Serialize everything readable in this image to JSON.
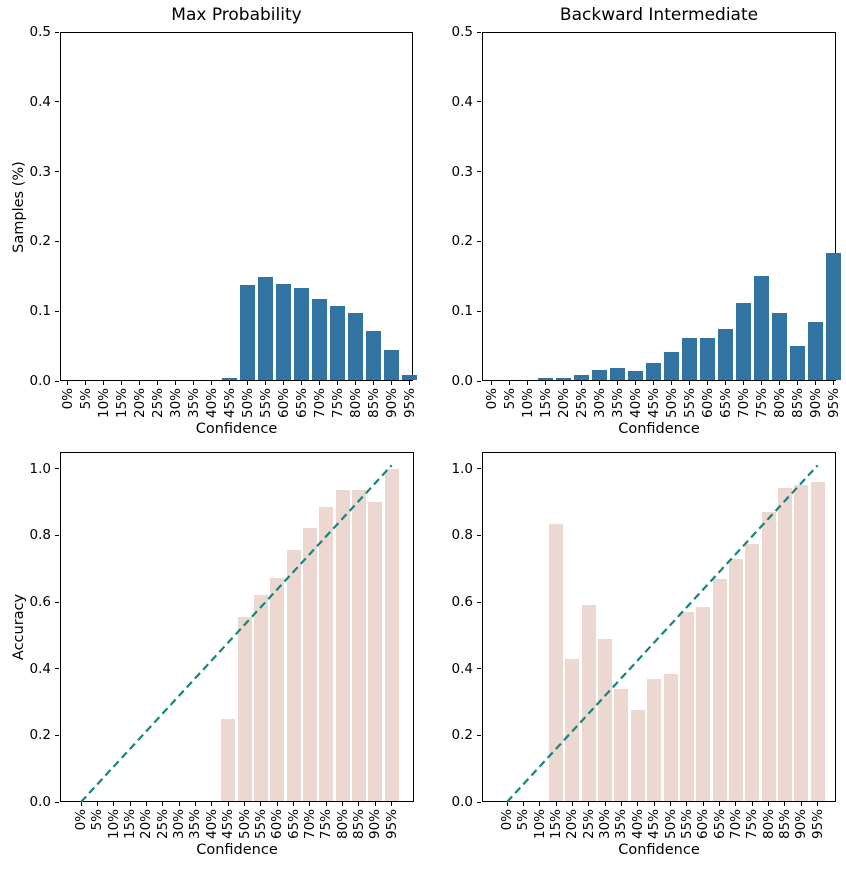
{
  "figure": {
    "background": "#ffffff",
    "text_color": "#000000",
    "spine_color": "#000000"
  },
  "chart_data": [
    {
      "id": "max-probability-samples",
      "type": "bar",
      "title": "Max Probability",
      "xlabel": "Confidence",
      "ylabel": "Samples (%)",
      "categories": [
        "0%",
        "5%",
        "10%",
        "15%",
        "20%",
        "25%",
        "30%",
        "35%",
        "40%",
        "45%",
        "50%",
        "55%",
        "60%",
        "65%",
        "70%",
        "75%",
        "80%",
        "85%",
        "90%",
        "95%"
      ],
      "values": [
        0,
        0,
        0,
        0,
        0,
        0,
        0,
        0,
        0,
        0.004,
        0.137,
        0.149,
        0.139,
        0.133,
        0.118,
        0.108,
        0.098,
        0.071,
        0.045,
        0.008
      ],
      "bar_color": "#3274a1",
      "ylim": [
        0,
        0.5
      ],
      "yticks": [
        0.0,
        0.1,
        0.2,
        0.3,
        0.4,
        0.5
      ],
      "grid": false,
      "legend": null
    },
    {
      "id": "backward-intermediate-samples",
      "type": "bar",
      "title": "Backward Intermediate",
      "xlabel": "Confidence",
      "ylabel": "",
      "categories": [
        "0%",
        "5%",
        "10%",
        "15%",
        "20%",
        "25%",
        "30%",
        "35%",
        "40%",
        "45%",
        "50%",
        "55%",
        "60%",
        "65%",
        "70%",
        "75%",
        "80%",
        "85%",
        "90%",
        "95%"
      ],
      "values": [
        0,
        0,
        0,
        0.004,
        0.004,
        0.009,
        0.016,
        0.018,
        0.015,
        0.026,
        0.041,
        0.061,
        0.062,
        0.074,
        0.112,
        0.151,
        0.098,
        0.05,
        0.085,
        0.183
      ],
      "bar_color": "#3274a1",
      "ylim": [
        0,
        0.5
      ],
      "yticks": [
        0.0,
        0.1,
        0.2,
        0.3,
        0.4,
        0.5
      ],
      "grid": false,
      "legend": null
    },
    {
      "id": "max-probability-accuracy",
      "type": "bar+line",
      "title": "",
      "xlabel": "Confidence",
      "ylabel": "Accuracy",
      "categories": [
        "0%",
        "5%",
        "10%",
        "15%",
        "20%",
        "25%",
        "30%",
        "35%",
        "40%",
        "45%",
        "50%",
        "55%",
        "60%",
        "65%",
        "70%",
        "75%",
        "80%",
        "85%",
        "90%",
        "95%"
      ],
      "values": [
        0,
        0,
        0,
        0,
        0,
        0,
        0,
        0,
        0,
        0.25,
        0.555,
        0.62,
        0.671,
        0.757,
        0.823,
        0.884,
        0.937,
        0.937,
        0.9,
        1.0
      ],
      "bar_color": "#ecd7d1",
      "ylim": [
        0,
        1.05
      ],
      "yticks": [
        0.0,
        0.2,
        0.4,
        0.6,
        0.8,
        1.0
      ],
      "grid": false,
      "legend": null,
      "line": {
        "style": "dashed",
        "color": "#10867e",
        "x_index": [
          0,
          19
        ],
        "y": [
          0,
          1.01
        ]
      }
    },
    {
      "id": "backward-intermediate-accuracy",
      "type": "bar+line",
      "title": "",
      "xlabel": "Confidence",
      "ylabel": "",
      "categories": [
        "0%",
        "5%",
        "10%",
        "15%",
        "20%",
        "25%",
        "30%",
        "35%",
        "40%",
        "45%",
        "50%",
        "55%",
        "60%",
        "65%",
        "70%",
        "75%",
        "80%",
        "85%",
        "90%",
        "95%"
      ],
      "values": [
        0,
        0,
        0,
        0.833,
        0.428,
        0.59,
        0.489,
        0.34,
        0.277,
        0.37,
        0.385,
        0.57,
        0.585,
        0.67,
        0.73,
        0.775,
        0.87,
        0.942,
        0.952,
        0.96
      ],
      "bar_color": "#ecd7d1",
      "ylim": [
        0,
        1.05
      ],
      "yticks": [
        0.0,
        0.2,
        0.4,
        0.6,
        0.8,
        1.0
      ],
      "grid": false,
      "legend": null,
      "line": {
        "style": "dashed",
        "color": "#10867e",
        "x_index": [
          0,
          19
        ],
        "y": [
          0,
          1.01
        ]
      }
    }
  ]
}
